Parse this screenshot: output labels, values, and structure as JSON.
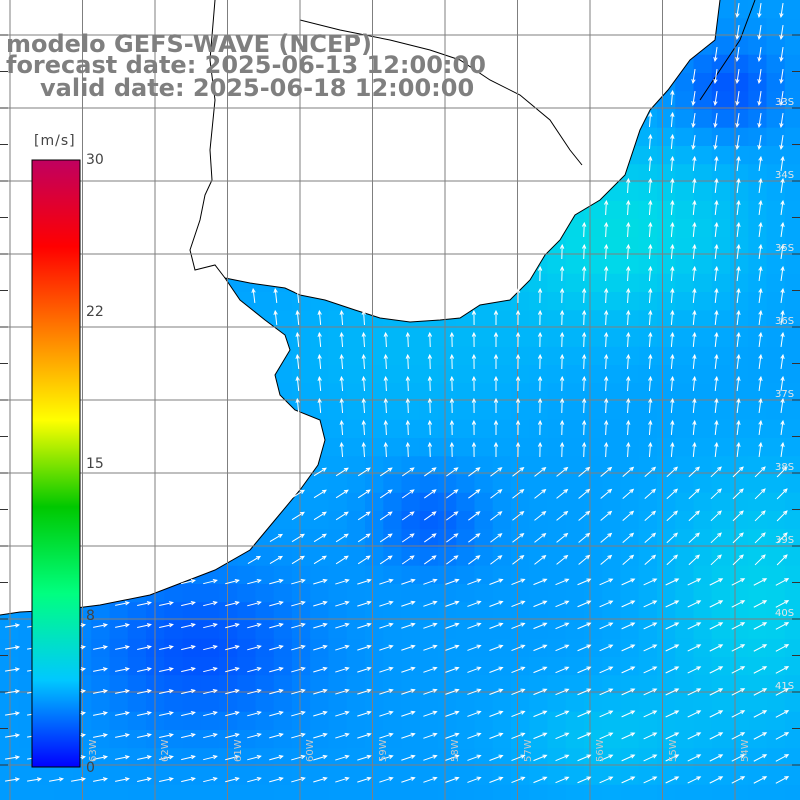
{
  "header": {
    "line1": "modelo GEFS-WAVE (NCEP)",
    "line2": "forecast date: 2025-06-13 12:00:00",
    "line3": "valid date: 2025-06-18 12:00:00"
  },
  "colorbar": {
    "unit": "[m/s]",
    "ticks": [
      "30",
      "22",
      "15",
      "8",
      "0"
    ],
    "tick_values": [
      30,
      22,
      15,
      8,
      0
    ],
    "colors": [
      "#0000ff",
      "#00c8ff",
      "#00ff80",
      "#00c800",
      "#ffff00",
      "#ff8000",
      "#ff0000",
      "#c00060"
    ]
  },
  "map": {
    "lat_labels": [
      "33S",
      "34S",
      "35S",
      "36S",
      "37S",
      "38S",
      "39S",
      "40S",
      "41S"
    ],
    "lon_labels": [
      "63W",
      "62W",
      "61W",
      "60W",
      "59W",
      "58W",
      "57W",
      "56W",
      "55W",
      "54W"
    ],
    "land_color": "#ffffff",
    "grid_color": "#7f7f7f",
    "arrow_color": "#ffffff"
  }
}
